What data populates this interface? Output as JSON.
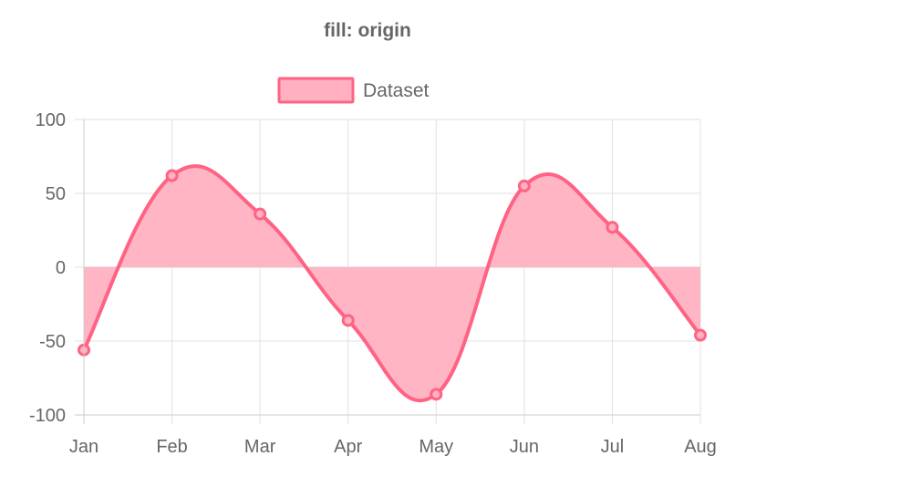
{
  "chart_data": {
    "type": "area",
    "title": "fill: origin",
    "categories": [
      "Jan",
      "Feb",
      "Mar",
      "Apr",
      "May",
      "Jun",
      "Jul",
      "Aug"
    ],
    "series": [
      {
        "name": "Dataset",
        "values": [
          -56,
          62,
          36,
          -36,
          -86,
          55,
          27,
          -46
        ],
        "color": "#ff6384",
        "fill_color": "#ffb1c1",
        "fill": "origin"
      }
    ],
    "xlabel": "",
    "ylabel": "",
    "ylim": [
      -100,
      100
    ],
    "yticks": [
      100,
      50,
      0,
      -50,
      -100
    ],
    "grid": true,
    "legend_position": "top"
  }
}
